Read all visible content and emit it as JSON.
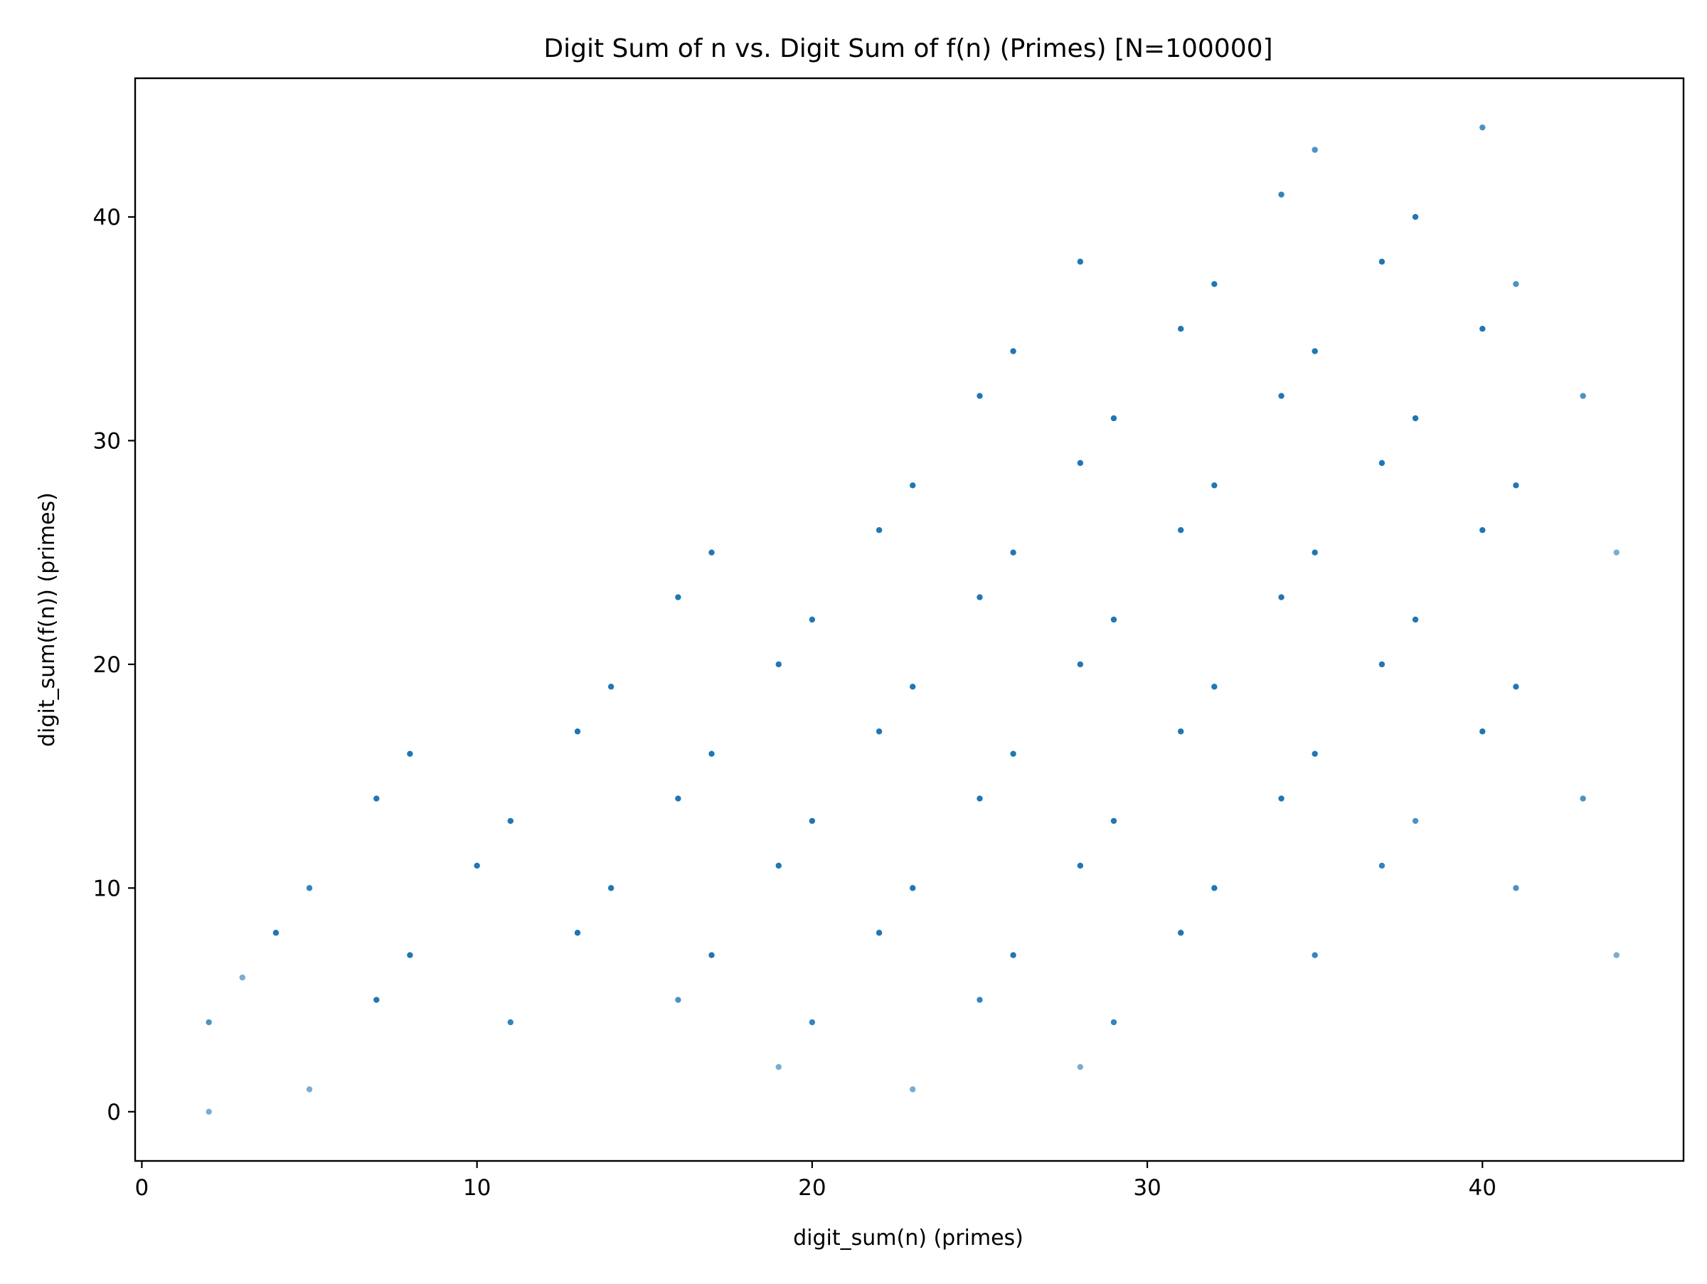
{
  "chart_data": {
    "type": "scatter",
    "title": "Digit Sum of n vs. Digit Sum of f(n) (Primes) [N=100000]",
    "xlabel": "digit_sum(n) (primes)",
    "ylabel": "digit_sum(f(n)) (primes)",
    "xlim": [
      -0.2,
      46.0
    ],
    "ylim": [
      -2.2,
      46.2
    ],
    "xticks": [
      0,
      10,
      20,
      30,
      40
    ],
    "yticks": [
      0,
      10,
      20,
      30,
      40
    ],
    "xtick_labels": [
      "0",
      "10",
      "20",
      "30",
      "40"
    ],
    "ytick_labels": [
      "0",
      "10",
      "20",
      "30",
      "40"
    ],
    "grid": false,
    "legend": "none",
    "marker_color": "#1f77b4",
    "points": [
      {
        "x": 2,
        "y": 0,
        "alpha": 0.6
      },
      {
        "x": 2,
        "y": 4,
        "alpha": 0.8
      },
      {
        "x": 3,
        "y": 6,
        "alpha": 0.6
      },
      {
        "x": 4,
        "y": 8,
        "alpha": 1
      },
      {
        "x": 5,
        "y": 1,
        "alpha": 0.6
      },
      {
        "x": 5,
        "y": 10,
        "alpha": 0.9
      },
      {
        "x": 7,
        "y": 5,
        "alpha": 1
      },
      {
        "x": 7,
        "y": 14,
        "alpha": 1
      },
      {
        "x": 8,
        "y": 7,
        "alpha": 1
      },
      {
        "x": 8,
        "y": 16,
        "alpha": 1
      },
      {
        "x": 10,
        "y": 11,
        "alpha": 1
      },
      {
        "x": 11,
        "y": 4,
        "alpha": 0.9
      },
      {
        "x": 11,
        "y": 13,
        "alpha": 1
      },
      {
        "x": 13,
        "y": 8,
        "alpha": 1
      },
      {
        "x": 13,
        "y": 17,
        "alpha": 1
      },
      {
        "x": 14,
        "y": 10,
        "alpha": 1
      },
      {
        "x": 14,
        "y": 19,
        "alpha": 1
      },
      {
        "x": 16,
        "y": 5,
        "alpha": 0.8
      },
      {
        "x": 16,
        "y": 14,
        "alpha": 1
      },
      {
        "x": 16,
        "y": 23,
        "alpha": 1
      },
      {
        "x": 17,
        "y": 7,
        "alpha": 1
      },
      {
        "x": 17,
        "y": 16,
        "alpha": 1
      },
      {
        "x": 17,
        "y": 25,
        "alpha": 1
      },
      {
        "x": 19,
        "y": 2,
        "alpha": 0.6
      },
      {
        "x": 19,
        "y": 11,
        "alpha": 1
      },
      {
        "x": 19,
        "y": 20,
        "alpha": 1
      },
      {
        "x": 20,
        "y": 4,
        "alpha": 0.9
      },
      {
        "x": 20,
        "y": 13,
        "alpha": 1
      },
      {
        "x": 20,
        "y": 22,
        "alpha": 1
      },
      {
        "x": 22,
        "y": 8,
        "alpha": 1
      },
      {
        "x": 22,
        "y": 17,
        "alpha": 1
      },
      {
        "x": 22,
        "y": 26,
        "alpha": 1
      },
      {
        "x": 23,
        "y": 1,
        "alpha": 0.6
      },
      {
        "x": 23,
        "y": 10,
        "alpha": 1
      },
      {
        "x": 23,
        "y": 19,
        "alpha": 1
      },
      {
        "x": 23,
        "y": 28,
        "alpha": 1
      },
      {
        "x": 25,
        "y": 5,
        "alpha": 0.9
      },
      {
        "x": 25,
        "y": 14,
        "alpha": 1
      },
      {
        "x": 25,
        "y": 23,
        "alpha": 1
      },
      {
        "x": 25,
        "y": 32,
        "alpha": 1
      },
      {
        "x": 26,
        "y": 7,
        "alpha": 1
      },
      {
        "x": 26,
        "y": 16,
        "alpha": 1
      },
      {
        "x": 26,
        "y": 25,
        "alpha": 1
      },
      {
        "x": 26,
        "y": 34,
        "alpha": 1
      },
      {
        "x": 28,
        "y": 2,
        "alpha": 0.6
      },
      {
        "x": 28,
        "y": 11,
        "alpha": 1
      },
      {
        "x": 28,
        "y": 20,
        "alpha": 1
      },
      {
        "x": 28,
        "y": 29,
        "alpha": 1
      },
      {
        "x": 28,
        "y": 38,
        "alpha": 1
      },
      {
        "x": 29,
        "y": 4,
        "alpha": 0.9
      },
      {
        "x": 29,
        "y": 13,
        "alpha": 1
      },
      {
        "x": 29,
        "y": 22,
        "alpha": 1
      },
      {
        "x": 29,
        "y": 31,
        "alpha": 1
      },
      {
        "x": 31,
        "y": 8,
        "alpha": 1
      },
      {
        "x": 31,
        "y": 17,
        "alpha": 1
      },
      {
        "x": 31,
        "y": 26,
        "alpha": 1
      },
      {
        "x": 31,
        "y": 35,
        "alpha": 1
      },
      {
        "x": 32,
        "y": 10,
        "alpha": 1
      },
      {
        "x": 32,
        "y": 19,
        "alpha": 1
      },
      {
        "x": 32,
        "y": 28,
        "alpha": 1
      },
      {
        "x": 32,
        "y": 37,
        "alpha": 1
      },
      {
        "x": 34,
        "y": 14,
        "alpha": 1
      },
      {
        "x": 34,
        "y": 23,
        "alpha": 1
      },
      {
        "x": 34,
        "y": 32,
        "alpha": 1
      },
      {
        "x": 34,
        "y": 41,
        "alpha": 0.9
      },
      {
        "x": 35,
        "y": 7,
        "alpha": 0.9
      },
      {
        "x": 35,
        "y": 16,
        "alpha": 1
      },
      {
        "x": 35,
        "y": 25,
        "alpha": 1
      },
      {
        "x": 35,
        "y": 34,
        "alpha": 1
      },
      {
        "x": 35,
        "y": 43,
        "alpha": 0.8
      },
      {
        "x": 37,
        "y": 11,
        "alpha": 0.9
      },
      {
        "x": 37,
        "y": 20,
        "alpha": 1
      },
      {
        "x": 37,
        "y": 29,
        "alpha": 1
      },
      {
        "x": 37,
        "y": 38,
        "alpha": 1
      },
      {
        "x": 38,
        "y": 13,
        "alpha": 0.8
      },
      {
        "x": 38,
        "y": 22,
        "alpha": 1
      },
      {
        "x": 38,
        "y": 31,
        "alpha": 1
      },
      {
        "x": 38,
        "y": 40,
        "alpha": 1
      },
      {
        "x": 40,
        "y": 17,
        "alpha": 1
      },
      {
        "x": 40,
        "y": 26,
        "alpha": 1
      },
      {
        "x": 40,
        "y": 35,
        "alpha": 1
      },
      {
        "x": 40,
        "y": 44,
        "alpha": 0.8
      },
      {
        "x": 41,
        "y": 10,
        "alpha": 0.8
      },
      {
        "x": 41,
        "y": 19,
        "alpha": 1
      },
      {
        "x": 41,
        "y": 28,
        "alpha": 1
      },
      {
        "x": 41,
        "y": 37,
        "alpha": 0.8
      },
      {
        "x": 43,
        "y": 14,
        "alpha": 0.8
      },
      {
        "x": 43,
        "y": 32,
        "alpha": 0.8
      },
      {
        "x": 44,
        "y": 7,
        "alpha": 0.6
      },
      {
        "x": 44,
        "y": 25,
        "alpha": 0.6
      }
    ]
  }
}
